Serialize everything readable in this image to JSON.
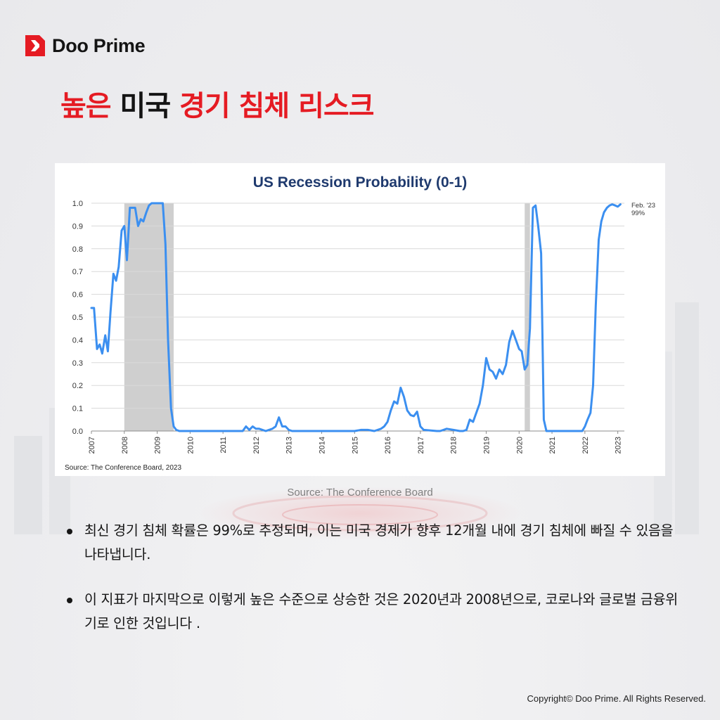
{
  "brand": {
    "name": "Doo Prime"
  },
  "title": {
    "part1": "높은",
    "part2": "미국",
    "part3": "경기 침체 리스크"
  },
  "caption": "Source: The Conference Board",
  "bullets": [
    "최신 경기 침체 확률은 99%로 추정되며, 이는 미국 경제가 향후 12개월 내에 경기 침체에 빠질 수 있음을 나타냅니다.",
    "이 지표가 마지막으로 이렇게 높은 수준으로 상승한 것은 2020년과 2008년으로, 코로나와 글로벌 금융위기로 인한 것입니다 ."
  ],
  "copyright": "Copyright© Doo Prime. All Rights Reserved.",
  "colors": {
    "accent": "#e51b23",
    "line": "#3b8ff0",
    "recession_shade": "#cfcfcf",
    "chart_title": "#1f3a6e"
  },
  "chart_data": {
    "type": "line",
    "title": "US Recession Probability (0-1)",
    "source": "Source: The Conference Board, 2023",
    "annotation": {
      "line1": "Feb. '23",
      "line2": "99%"
    },
    "xlim": [
      2007,
      2023.2
    ],
    "ylim": [
      0,
      1
    ],
    "xticks": [
      "2007",
      "2008",
      "2009",
      "2010",
      "2011",
      "2012",
      "2013",
      "2014",
      "2015",
      "2016",
      "2017",
      "2018",
      "2019",
      "2020",
      "2021",
      "2022",
      "2023"
    ],
    "yticks": [
      "0.0",
      "0.1",
      "0.2",
      "0.3",
      "0.4",
      "0.5",
      "0.6",
      "0.7",
      "0.8",
      "0.9",
      "1.0"
    ],
    "grid": "horizontal",
    "recessions": [
      [
        2008.0,
        2009.5
      ],
      [
        2020.17,
        2020.33
      ]
    ],
    "series": [
      {
        "x": [
          2007.0,
          2007.08,
          2007.17,
          2007.25,
          2007.33,
          2007.42,
          2007.5,
          2007.58,
          2007.67,
          2007.75,
          2007.83,
          2007.92,
          2008.0,
          2008.08,
          2008.17,
          2008.25,
          2008.33,
          2008.42,
          2008.5,
          2008.58,
          2008.67,
          2008.75,
          2008.83,
          2008.92,
          2009.0,
          2009.17,
          2009.25,
          2009.33,
          2009.42,
          2009.5,
          2009.58,
          2009.67,
          2010.0,
          2011.0,
          2011.6,
          2011.7,
          2011.8,
          2011.9,
          2012.0,
          2012.1,
          2012.3,
          2012.5,
          2012.6,
          2012.7,
          2012.8,
          2012.9,
          2013.0,
          2013.1,
          2013.3,
          2014.0,
          2015.0,
          2015.2,
          2015.4,
          2015.6,
          2015.8,
          2015.9,
          2016.0,
          2016.1,
          2016.2,
          2016.3,
          2016.4,
          2016.5,
          2016.6,
          2016.7,
          2016.8,
          2016.9,
          2017.0,
          2017.1,
          2017.5,
          2017.6,
          2017.7,
          2017.8,
          2018.0,
          2018.2,
          2018.3,
          2018.4,
          2018.5,
          2018.6,
          2018.7,
          2018.8,
          2018.9,
          2019.0,
          2019.1,
          2019.2,
          2019.3,
          2019.4,
          2019.5,
          2019.6,
          2019.7,
          2019.8,
          2019.9,
          2020.0,
          2020.08,
          2020.17,
          2020.25,
          2020.33,
          2020.42,
          2020.5,
          2020.58,
          2020.67,
          2020.75,
          2020.83,
          2021.0,
          2021.5,
          2021.8,
          2021.92,
          2022.0,
          2022.08,
          2022.17,
          2022.25,
          2022.33,
          2022.42,
          2022.5,
          2022.58,
          2022.67,
          2022.75,
          2022.83,
          2022.92,
          2023.0,
          2023.08
        ],
        "y": [
          0.54,
          0.54,
          0.36,
          0.38,
          0.34,
          0.42,
          0.35,
          0.52,
          0.69,
          0.66,
          0.72,
          0.88,
          0.9,
          0.75,
          0.98,
          0.98,
          0.98,
          0.9,
          0.93,
          0.92,
          0.96,
          0.99,
          1.0,
          1.0,
          1.0,
          1.0,
          0.82,
          0.4,
          0.1,
          0.02,
          0.005,
          0.0,
          0.0,
          0.0,
          0.0,
          0.02,
          0.005,
          0.02,
          0.01,
          0.01,
          0.0,
          0.01,
          0.02,
          0.06,
          0.02,
          0.02,
          0.005,
          0.0,
          0.0,
          0.0,
          0.0,
          0.005,
          0.005,
          0.0,
          0.01,
          0.02,
          0.04,
          0.09,
          0.13,
          0.12,
          0.19,
          0.15,
          0.09,
          0.07,
          0.065,
          0.085,
          0.02,
          0.005,
          0.0,
          0.0,
          0.005,
          0.01,
          0.005,
          0.0,
          0.0,
          0.005,
          0.05,
          0.04,
          0.08,
          0.12,
          0.2,
          0.32,
          0.27,
          0.26,
          0.23,
          0.27,
          0.25,
          0.29,
          0.39,
          0.44,
          0.4,
          0.36,
          0.35,
          0.27,
          0.29,
          0.45,
          0.98,
          0.99,
          0.9,
          0.78,
          0.05,
          0.0,
          0.0,
          0.0,
          0.0,
          0.0,
          0.02,
          0.05,
          0.08,
          0.2,
          0.55,
          0.84,
          0.92,
          0.96,
          0.98,
          0.99,
          0.995,
          0.99,
          0.985,
          0.995
        ]
      }
    ]
  }
}
